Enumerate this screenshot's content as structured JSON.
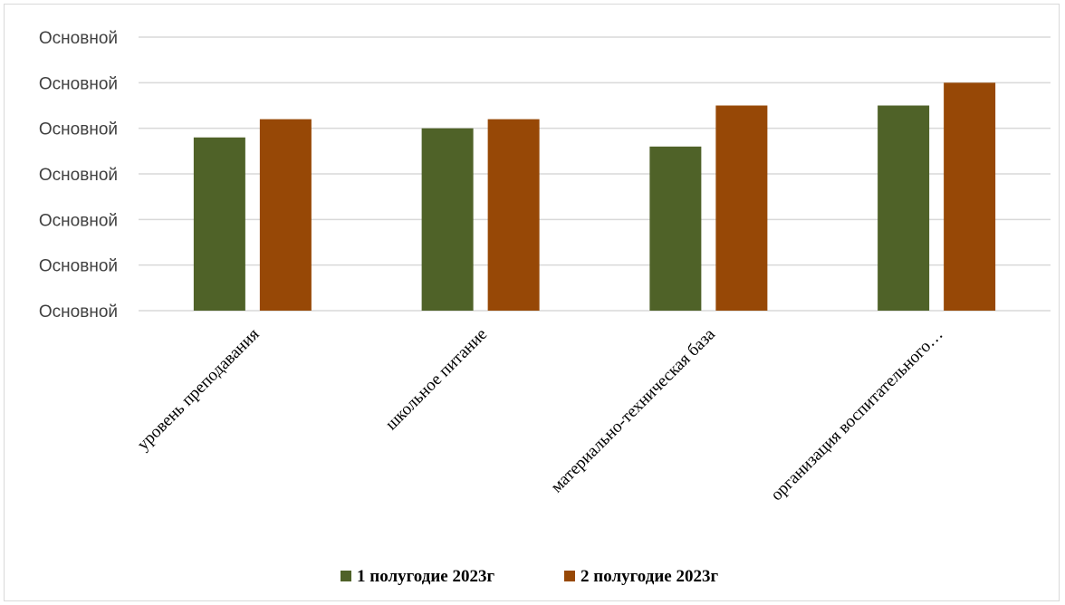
{
  "chart_data": {
    "type": "bar",
    "categories": [
      "уровень преподавания",
      "школьное питание",
      "материально-техническая база",
      "организация воспитательного…"
    ],
    "series": [
      {
        "name": "1 полугодие 2023г",
        "color": "#4f6228",
        "values": [
          3.8,
          4.0,
          3.6,
          4.5
        ]
      },
      {
        "name": "2 полугодие 2023г",
        "color": "#974806",
        "values": [
          4.2,
          4.2,
          4.5,
          5.0
        ]
      }
    ],
    "yticks": [
      "Основной",
      "Основной",
      "Основной",
      "Основной",
      "Основной",
      "Основной",
      "Основной"
    ],
    "ylim": [
      0,
      6
    ],
    "grid": true,
    "legend_position": "bottom"
  }
}
